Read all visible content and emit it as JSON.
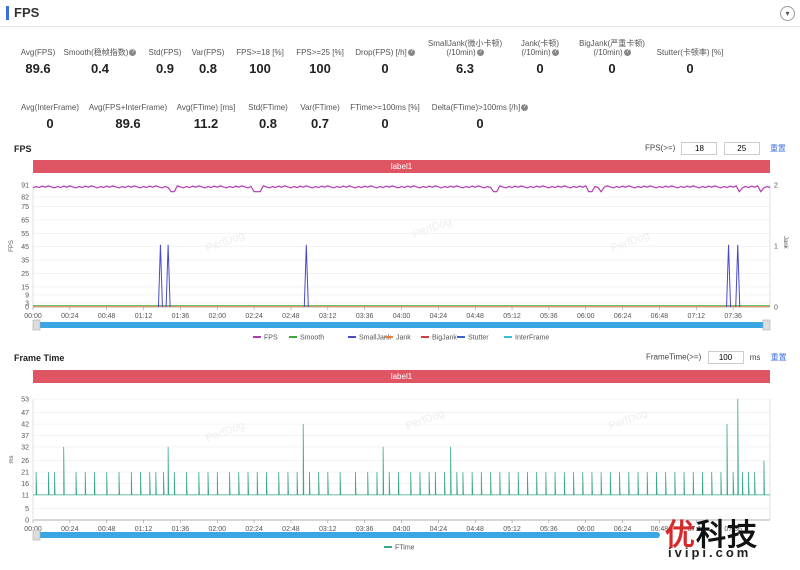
{
  "header": {
    "title": "FPS",
    "toggle_icon": "▾"
  },
  "metrics_row1": [
    {
      "label": "Avg(FPS)",
      "value": "89.6",
      "help": false
    },
    {
      "label": "Smooth(稳帧指数)",
      "value": "0.4",
      "help": true
    },
    {
      "label": "Std(FPS)",
      "value": "0.9",
      "help": false
    },
    {
      "label": "Var(FPS)",
      "value": "0.8",
      "help": false
    },
    {
      "label": "FPS>=18 [%]",
      "value": "100",
      "help": false
    },
    {
      "label": "FPS>=25 [%]",
      "value": "100",
      "help": false
    },
    {
      "label": "Drop(FPS) [/h]",
      "value": "0",
      "help": true
    },
    {
      "label": "SmallJank(微小卡顿)\n(/10min)",
      "value": "6.3",
      "help": true
    },
    {
      "label": "Jank(卡顿)\n(/10min)",
      "value": "0",
      "help": true
    },
    {
      "label": "BigJank(严重卡顿)\n(/10min)",
      "value": "0",
      "help": true
    },
    {
      "label": "Stutter(卡顿率) [%]",
      "value": "0",
      "help": false
    }
  ],
  "metrics_row2": [
    {
      "label": "Avg(InterFrame)",
      "value": "0",
      "help": false
    },
    {
      "label": "Avg(FPS+InterFrame)",
      "value": "89.6",
      "help": false
    },
    {
      "label": "Avg(FTime) [ms]",
      "value": "11.2",
      "help": false
    },
    {
      "label": "Std(FTime)",
      "value": "0.8",
      "help": false
    },
    {
      "label": "Var(FTime)",
      "value": "0.7",
      "help": false
    },
    {
      "label": "FTime>=100ms [%]",
      "value": "0",
      "help": false
    },
    {
      "label": "Delta(FTime)>100ms [/h]",
      "value": "0",
      "help": true
    }
  ],
  "fps_section": {
    "title": "FPS",
    "control_label": "FPS(>=)",
    "input1": "18",
    "input2": "25",
    "reset": "重置",
    "label_bar": "label1"
  },
  "ftime_section": {
    "title": "Frame Time",
    "control_label": "FrameTime(>=)",
    "input": "100",
    "unit": "ms",
    "reset": "重置",
    "label_bar": "label1"
  },
  "watermark": "PerfDog",
  "logo": {
    "brand_red": "优",
    "brand_black": "科技",
    "domain": "ivipi.com"
  },
  "chart_data": [
    {
      "type": "line",
      "title": "FPS",
      "ylabel": "FPS",
      "y2label": "Jank",
      "ylim": [
        0,
        91
      ],
      "y2lim": [
        0,
        2
      ],
      "yticks": [
        0,
        3,
        9,
        15,
        25,
        35,
        45,
        55,
        65,
        75,
        82,
        91
      ],
      "y2ticks": [
        0,
        1,
        2
      ],
      "xticks": [
        "00:00",
        "00:24",
        "00:48",
        "01:12",
        "01:36",
        "02:00",
        "02:24",
        "02:48",
        "03:12",
        "03:36",
        "04:00",
        "04:24",
        "04:48",
        "05:12",
        "05:36",
        "06:00",
        "06:24",
        "06:48",
        "07:12",
        "07:36"
      ],
      "duration_s": 480,
      "legend": [
        "FPS",
        "Smooth",
        "SmallJank",
        "Jank",
        "BigJank",
        "Stutter",
        "InterFrame"
      ],
      "legend_colors": [
        "#b23bb3",
        "#3aaa3a",
        "#4a4ac8",
        "#e8823a",
        "#d83b3b",
        "#3b66c8",
        "#3bbfd8"
      ],
      "series": [
        {
          "name": "FPS",
          "baseline": 89.6,
          "dips": [
            [
              90,
              86
            ],
            [
              92,
              86
            ],
            [
              145,
              86
            ],
            [
              148,
              86
            ],
            [
              300,
              86
            ],
            [
              302,
              86
            ],
            [
              363,
              86
            ],
            [
              370,
              86
            ],
            [
              460,
              86
            ],
            [
              474,
              86
            ]
          ]
        },
        {
          "name": "SmallJank",
          "spikes_s": [
            83,
            88,
            178,
            453,
            459
          ]
        },
        {
          "name": "Smooth",
          "level": 1
        }
      ]
    },
    {
      "type": "line",
      "title": "Frame Time",
      "ylabel": "ms",
      "ylim": [
        0,
        53
      ],
      "yticks": [
        0,
        5,
        11,
        16,
        21,
        26,
        32,
        37,
        42,
        47,
        53
      ],
      "xticks": [
        "00:00",
        "00:24",
        "00:48",
        "01:12",
        "01:36",
        "02:00",
        "02:24",
        "02:48",
        "03:12",
        "03:36",
        "04:00",
        "04:24",
        "04:48",
        "05:12",
        "05:36",
        "06:00",
        "06:24",
        "06:48",
        "07:12",
        "07:36"
      ],
      "duration_s": 480,
      "legend": [
        "FTime"
      ],
      "legend_colors": [
        "#3aa88a"
      ],
      "series": [
        {
          "name": "FTime",
          "baseline": 11,
          "spikes": [
            [
              2,
              21
            ],
            [
              10,
              21
            ],
            [
              14,
              21
            ],
            [
              20,
              32
            ],
            [
              28,
              21
            ],
            [
              34,
              21
            ],
            [
              40,
              21
            ],
            [
              48,
              21
            ],
            [
              56,
              21
            ],
            [
              64,
              21
            ],
            [
              70,
              21
            ],
            [
              76,
              21
            ],
            [
              80,
              21
            ],
            [
              85,
              21
            ],
            [
              88,
              32
            ],
            [
              92,
              21
            ],
            [
              100,
              21
            ],
            [
              108,
              21
            ],
            [
              114,
              21
            ],
            [
              120,
              21
            ],
            [
              128,
              21
            ],
            [
              134,
              21
            ],
            [
              140,
              21
            ],
            [
              146,
              21
            ],
            [
              152,
              21
            ],
            [
              160,
              21
            ],
            [
              166,
              21
            ],
            [
              172,
              21
            ],
            [
              176,
              42
            ],
            [
              180,
              21
            ],
            [
              186,
              21
            ],
            [
              192,
              21
            ],
            [
              200,
              21
            ],
            [
              210,
              21
            ],
            [
              218,
              21
            ],
            [
              224,
              21
            ],
            [
              228,
              32
            ],
            [
              232,
              21
            ],
            [
              238,
              21
            ],
            [
              246,
              21
            ],
            [
              252,
              21
            ],
            [
              258,
              21
            ],
            [
              262,
              21
            ],
            [
              268,
              21
            ],
            [
              272,
              32
            ],
            [
              276,
              21
            ],
            [
              280,
              21
            ],
            [
              286,
              21
            ],
            [
              292,
              21
            ],
            [
              298,
              21
            ],
            [
              304,
              21
            ],
            [
              310,
              21
            ],
            [
              316,
              21
            ],
            [
              322,
              21
            ],
            [
              328,
              21
            ],
            [
              334,
              21
            ],
            [
              340,
              21
            ],
            [
              346,
              21
            ],
            [
              352,
              21
            ],
            [
              358,
              21
            ],
            [
              364,
              21
            ],
            [
              370,
              21
            ],
            [
              376,
              21
            ],
            [
              382,
              21
            ],
            [
              388,
              21
            ],
            [
              394,
              21
            ],
            [
              400,
              21
            ],
            [
              406,
              21
            ],
            [
              412,
              21
            ],
            [
              418,
              21
            ],
            [
              424,
              21
            ],
            [
              430,
              21
            ],
            [
              436,
              21
            ],
            [
              442,
              21
            ],
            [
              448,
              21
            ],
            [
              452,
              42
            ],
            [
              456,
              21
            ],
            [
              459,
              53
            ],
            [
              462,
              21
            ],
            [
              466,
              21
            ],
            [
              470,
              21
            ],
            [
              476,
              26
            ]
          ]
        }
      ]
    }
  ]
}
